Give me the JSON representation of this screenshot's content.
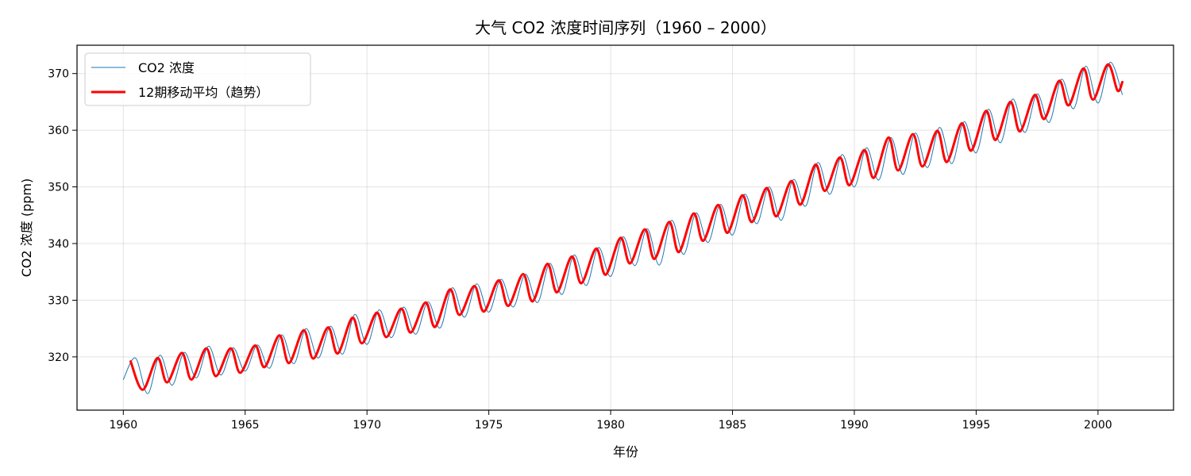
{
  "chart_data": {
    "type": "line",
    "title": "大气 CO2 浓度时间序列（1960 – 2000）",
    "xlabel": "年份",
    "ylabel": "CO2 浓度 (ppm)",
    "xlim": [
      1958.1,
      2003.1
    ],
    "ylim": [
      310.6,
      375.0
    ],
    "x_ticks": [
      1960,
      1965,
      1970,
      1975,
      1980,
      1985,
      1990,
      1995,
      2000
    ],
    "y_ticks": [
      320,
      330,
      340,
      350,
      360,
      370
    ],
    "grid": true,
    "legend_position": "top-left",
    "series": [
      {
        "name": "CO2 浓度",
        "color": "#1f77b4",
        "line_width": 1,
        "x": [
          1960.0,
          1960.5,
          1961.0,
          1961.5,
          1962.0,
          1962.5,
          1963.0,
          1963.5,
          1964.0,
          1964.5,
          1965.0,
          1965.5,
          1966.0,
          1966.5,
          1967.0,
          1967.5,
          1968.0,
          1968.5,
          1969.0,
          1969.5,
          1970.0,
          1970.5,
          1971.0,
          1971.5,
          1972.0,
          1972.5,
          1973.0,
          1973.5,
          1974.0,
          1974.5,
          1975.0,
          1975.5,
          1976.0,
          1976.5,
          1977.0,
          1977.5,
          1978.0,
          1978.5,
          1979.0,
          1979.5,
          1980.0,
          1980.5,
          1981.0,
          1981.5,
          1982.0,
          1982.5,
          1983.0,
          1983.5,
          1984.0,
          1984.5,
          1985.0,
          1985.5,
          1986.0,
          1986.5,
          1987.0,
          1987.5,
          1988.0,
          1988.5,
          1989.0,
          1989.5,
          1990.0,
          1990.5,
          1991.0,
          1991.5,
          1992.0,
          1992.5,
          1993.0,
          1993.5,
          1994.0,
          1994.5,
          1995.0,
          1995.5,
          1996.0,
          1996.5,
          1997.0,
          1997.5,
          1998.0,
          1998.5,
          1999.0,
          1999.5,
          2000.0,
          2000.5,
          2001.0
        ],
        "y": [
          316.0,
          319.8,
          313.5,
          320.3,
          315.0,
          320.8,
          316.3,
          321.9,
          316.8,
          321.6,
          317.5,
          322.1,
          318.0,
          323.9,
          318.8,
          325.0,
          319.8,
          325.4,
          320.5,
          327.5,
          322.2,
          328.3,
          323.4,
          328.8,
          324.0,
          329.7,
          325.1,
          332.2,
          327.0,
          332.9,
          327.9,
          333.7,
          328.8,
          334.6,
          329.6,
          336.5,
          331.0,
          338.0,
          332.6,
          339.3,
          334.2,
          341.2,
          336.1,
          342.6,
          336.2,
          344.1,
          338.1,
          345.4,
          340.2,
          346.9,
          341.5,
          348.7,
          343.5,
          350.0,
          344.1,
          351.3,
          346.6,
          354.3,
          348.7,
          355.7,
          350.0,
          356.9,
          351.2,
          358.7,
          352.2,
          359.5,
          353.4,
          360.5,
          354.1,
          361.5,
          356.0,
          363.7,
          357.8,
          365.5,
          359.6,
          366.4,
          361.4,
          369.0,
          363.8,
          371.3,
          364.8,
          372.0,
          366.3
        ]
      },
      {
        "name": "12期移动平均（趋势）",
        "color": "#ff0000",
        "line_width": 3,
        "x": [
          1960.3,
          1960.8,
          1961.4,
          1961.8,
          1962.4,
          1962.8,
          1963.4,
          1963.8,
          1964.4,
          1964.8,
          1965.4,
          1965.8,
          1966.4,
          1966.8,
          1967.4,
          1967.8,
          1968.4,
          1968.8,
          1969.4,
          1969.8,
          1970.4,
          1970.8,
          1971.4,
          1971.8,
          1972.4,
          1972.8,
          1973.4,
          1973.8,
          1974.4,
          1974.8,
          1975.4,
          1975.8,
          1976.4,
          1976.8,
          1977.4,
          1977.8,
          1978.4,
          1978.8,
          1979.4,
          1979.8,
          1980.4,
          1980.8,
          1981.4,
          1981.8,
          1982.4,
          1982.8,
          1983.4,
          1983.8,
          1984.4,
          1984.8,
          1985.4,
          1985.8,
          1986.4,
          1986.8,
          1987.4,
          1987.8,
          1988.4,
          1988.8,
          1989.4,
          1989.8,
          1990.4,
          1990.8,
          1991.4,
          1991.8,
          1992.4,
          1992.8,
          1993.4,
          1993.8,
          1994.4,
          1994.8,
          1995.4,
          1995.8,
          1996.4,
          1996.8,
          1997.4,
          1997.8,
          1998.4,
          1998.8,
          1999.4,
          1999.8,
          2000.4,
          2000.8,
          2001.0
        ],
        "y": [
          319.2,
          314.2,
          319.8,
          315.5,
          320.7,
          316.0,
          321.5,
          316.6,
          321.5,
          317.2,
          322.0,
          318.2,
          323.8,
          318.9,
          324.7,
          319.7,
          325.2,
          320.6,
          326.9,
          322.4,
          327.8,
          323.5,
          328.5,
          324.3,
          329.6,
          325.3,
          331.9,
          327.4,
          332.5,
          328.0,
          333.5,
          329.0,
          334.6,
          329.8,
          336.4,
          331.4,
          337.7,
          333.0,
          339.1,
          334.5,
          341.0,
          336.5,
          342.5,
          337.3,
          343.8,
          338.5,
          345.3,
          340.5,
          346.8,
          341.9,
          348.5,
          343.8,
          349.8,
          344.8,
          351.0,
          346.9,
          353.9,
          349.3,
          355.2,
          350.3,
          356.5,
          351.6,
          358.7,
          352.9,
          359.3,
          353.6,
          359.9,
          354.4,
          361.2,
          356.4,
          363.4,
          358.3,
          365.0,
          359.8,
          366.2,
          362.0,
          368.7,
          364.4,
          370.9,
          365.4,
          371.6,
          367.0,
          368.5
        ]
      }
    ]
  }
}
